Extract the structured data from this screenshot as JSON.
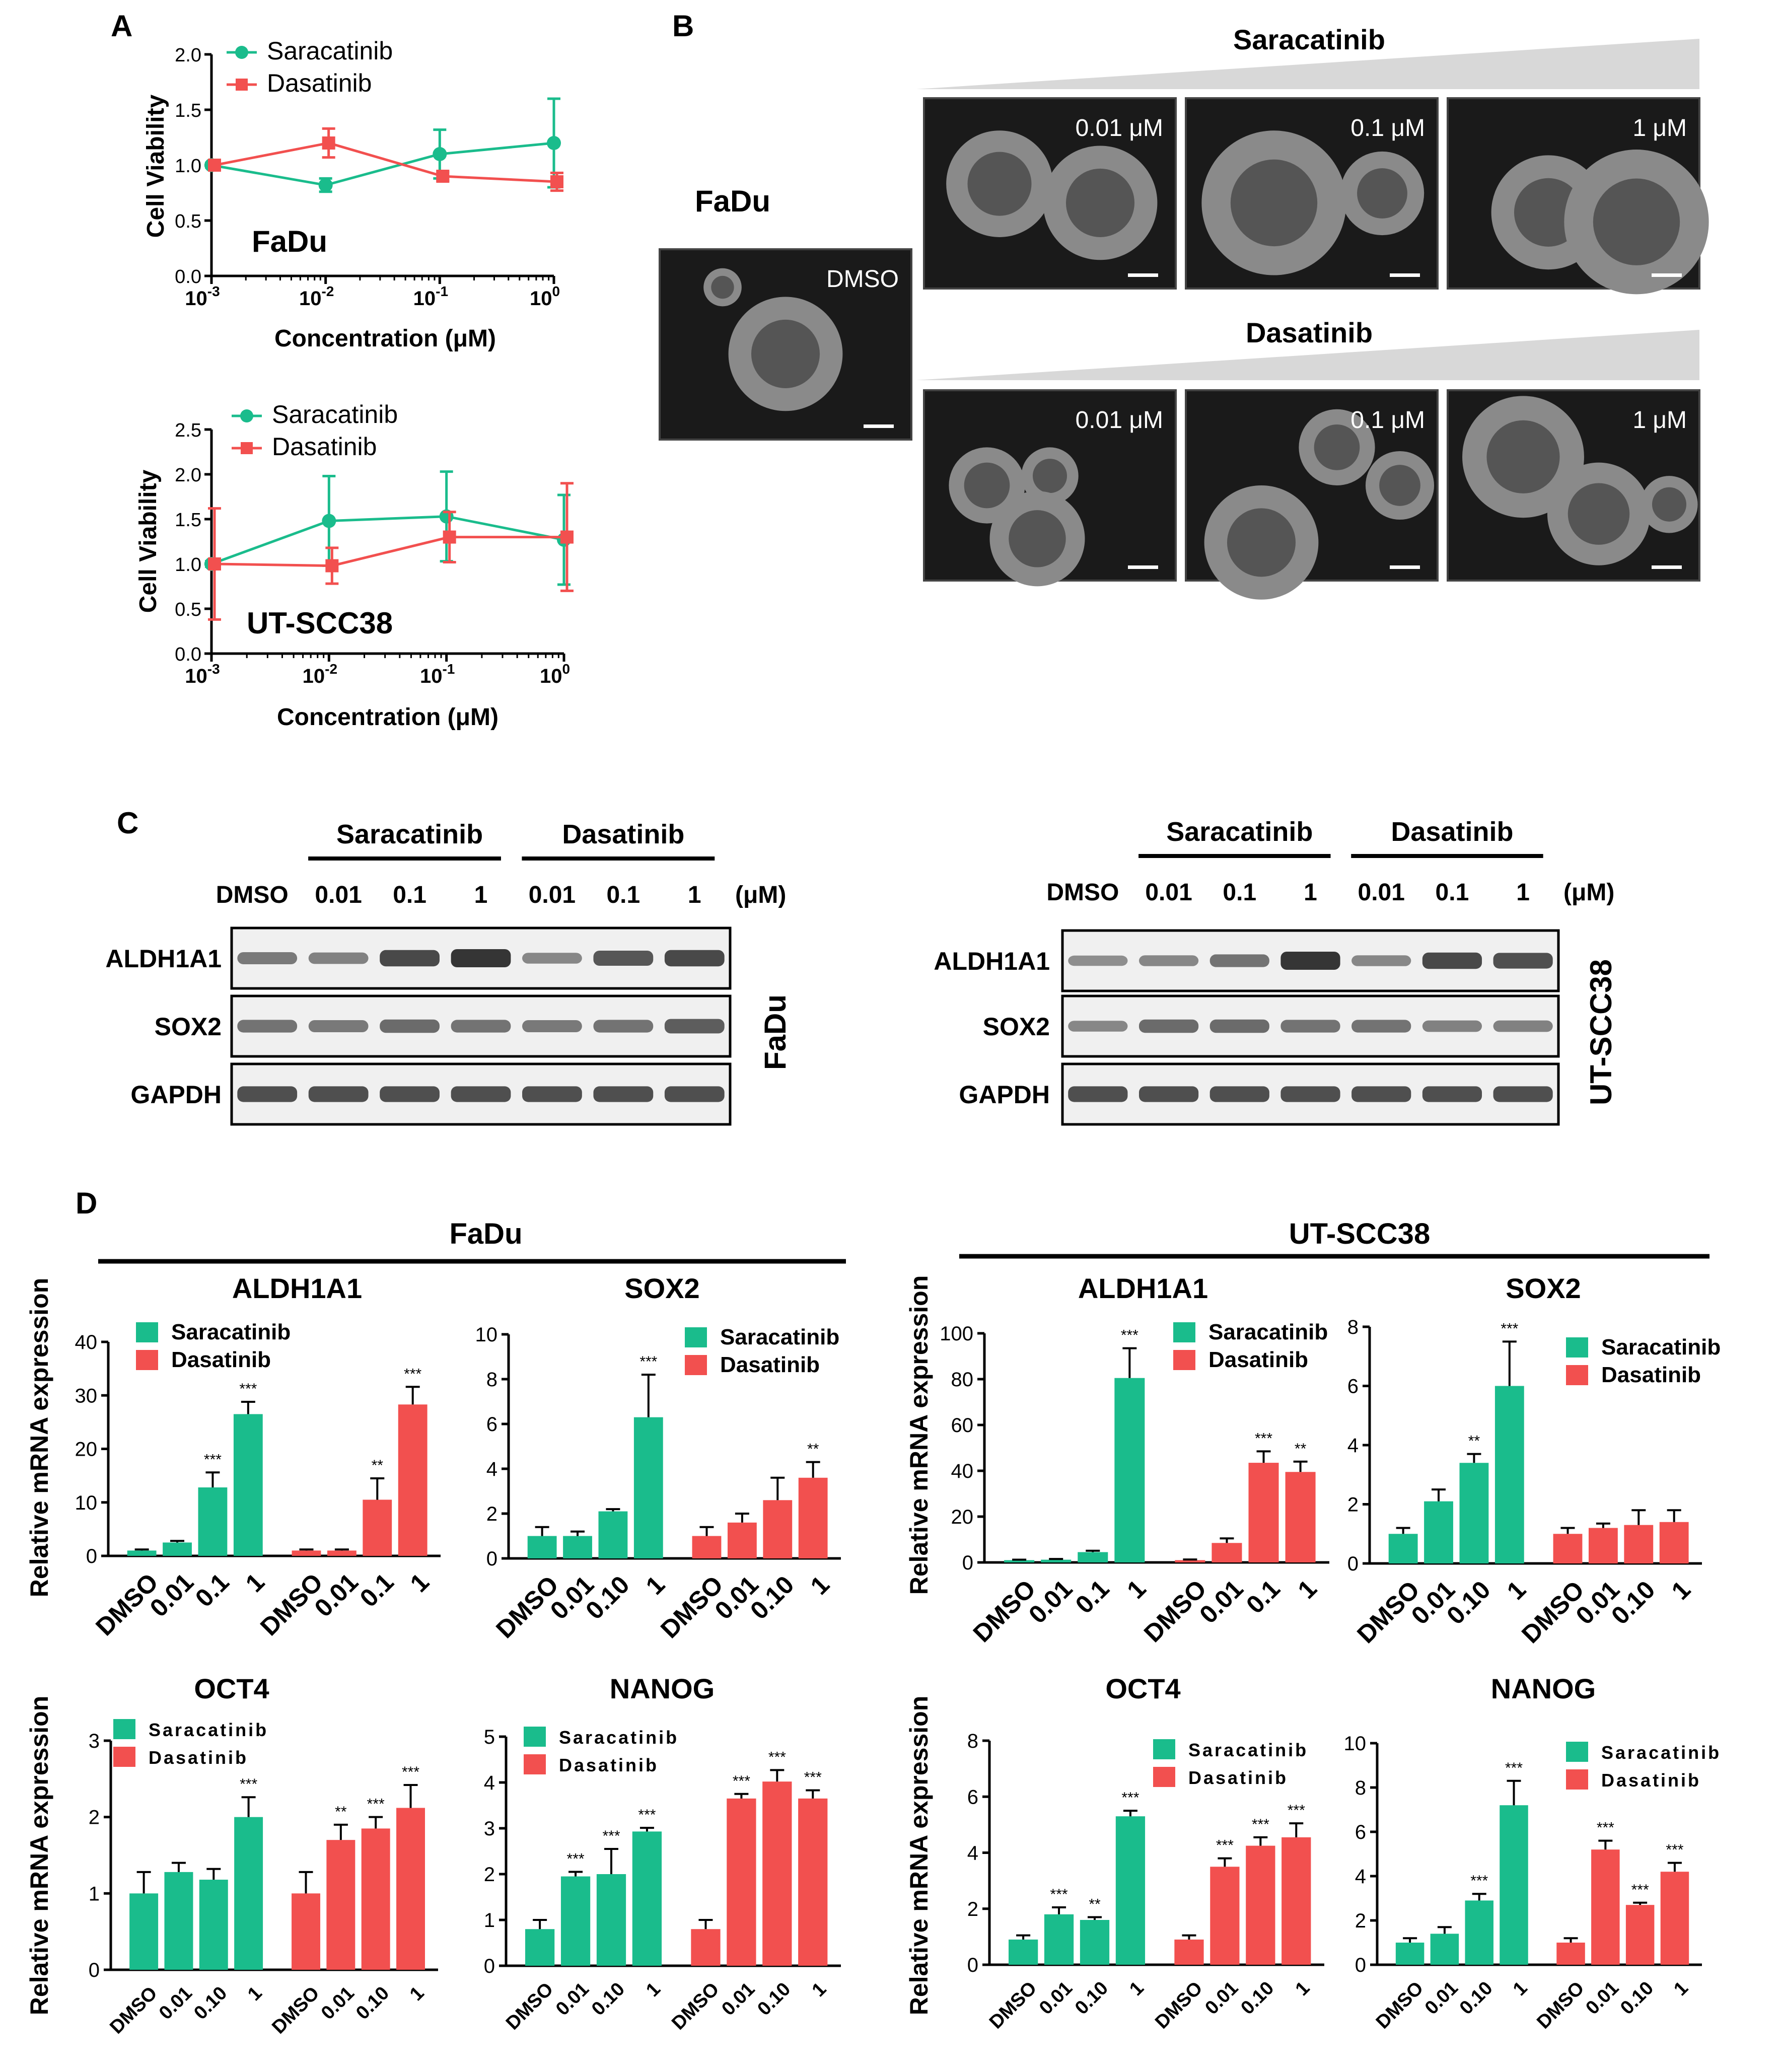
{
  "panel_labels": {
    "A": "A",
    "B": "B",
    "C": "C",
    "D": "D"
  },
  "colors": {
    "saracatinib": "#1abc8c",
    "dasatinib": "#f2504f",
    "axis": "#000000",
    "band": "#2a2a2a",
    "micro_bg": "#1a1a1a"
  },
  "chart_data": [
    {
      "id": "A1",
      "type": "line",
      "cell_line": "FaDu",
      "xlabel": "Concentration (μM)",
      "ylabel": "Cell Viability",
      "xscale": "log10",
      "x_ticks": [
        {
          "exp": -3,
          "base": "10",
          "sup": "-3"
        },
        {
          "exp": -2,
          "base": "10",
          "sup": "-2"
        },
        {
          "exp": -1,
          "base": "10",
          "sup": "-1"
        },
        {
          "exp": 0,
          "base": "10",
          "sup": "0"
        }
      ],
      "ylim": [
        0,
        2.0
      ],
      "y_ticks": [
        "0.0",
        "0.5",
        "1.0",
        "1.5",
        "2.0"
      ],
      "x": [
        0.001,
        0.01,
        0.1,
        1
      ],
      "series": [
        {
          "name": "Saracatinib",
          "color": "#1abc8c",
          "marker": "circle",
          "values": [
            1.0,
            0.82,
            1.1,
            1.2
          ],
          "errors": [
            0.02,
            0.06,
            0.22,
            0.4
          ]
        },
        {
          "name": "Dasatinib",
          "color": "#f2504f",
          "marker": "square",
          "values": [
            1.0,
            1.2,
            0.9,
            0.85
          ],
          "errors": [
            0.03,
            0.13,
            0.04,
            0.08
          ]
        }
      ]
    },
    {
      "id": "A2",
      "type": "line",
      "cell_line": "UT-SCC38",
      "xlabel": "Concentration (μM)",
      "ylabel": "Cell Viability",
      "xscale": "log10",
      "x_ticks": [
        {
          "exp": -3,
          "base": "10",
          "sup": "-3"
        },
        {
          "exp": -2,
          "base": "10",
          "sup": "-2"
        },
        {
          "exp": -1,
          "base": "10",
          "sup": "-1"
        },
        {
          "exp": 0,
          "base": "10",
          "sup": "0"
        }
      ],
      "ylim": [
        0,
        2.5
      ],
      "y_ticks": [
        "0.0",
        "0.5",
        "1.0",
        "1.5",
        "2.0",
        "2.5"
      ],
      "x": [
        0.001,
        0.01,
        0.1,
        1
      ],
      "series": [
        {
          "name": "Saracatinib",
          "color": "#1abc8c",
          "marker": "circle",
          "values": [
            1.0,
            1.48,
            1.53,
            1.27
          ],
          "errors": [
            0.03,
            0.5,
            0.5,
            0.5
          ]
        },
        {
          "name": "Dasatinib",
          "color": "#f2504f",
          "marker": "square",
          "values": [
            1.0,
            0.98,
            1.3,
            1.3
          ],
          "errors": [
            0.62,
            0.2,
            0.28,
            0.6
          ]
        }
      ]
    },
    {
      "id": "D-FaDu-ALDH1A1",
      "type": "bar",
      "cell_line": "FaDu",
      "gene": "ALDH1A1",
      "ylabel": "Relative mRNA expression",
      "ylim": [
        0,
        40
      ],
      "y_ticks": [
        "0",
        "10",
        "20",
        "30",
        "40"
      ],
      "categories": [
        "DMSO",
        "0.01",
        "0.1",
        "1"
      ],
      "series": [
        {
          "name": "Saracatinib",
          "values": [
            1,
            2.5,
            12.8,
            26.5
          ],
          "errors": [
            0.2,
            0.3,
            2.8,
            2.3
          ],
          "sig": [
            "",
            "",
            "***",
            "***"
          ]
        },
        {
          "name": "Dasatinib",
          "values": [
            1,
            1,
            10.5,
            28.3
          ],
          "errors": [
            0.2,
            0.2,
            4.0,
            3.3
          ],
          "sig": [
            "",
            "",
            "**",
            "***"
          ]
        }
      ]
    },
    {
      "id": "D-FaDu-SOX2",
      "type": "bar",
      "cell_line": "FaDu",
      "gene": "SOX2",
      "ylabel": "",
      "ylim": [
        0,
        10
      ],
      "y_ticks": [
        "0",
        "2",
        "4",
        "6",
        "8",
        "10"
      ],
      "categories": [
        "DMSO",
        "0.01",
        "0.10",
        "1"
      ],
      "series": [
        {
          "name": "Saracatinib",
          "values": [
            1,
            1,
            2.1,
            6.3
          ],
          "errors": [
            0.4,
            0.2,
            0.1,
            1.9
          ],
          "sig": [
            "",
            "",
            "",
            "***"
          ]
        },
        {
          "name": "Dasatinib",
          "values": [
            1,
            1.6,
            2.6,
            3.6
          ],
          "errors": [
            0.4,
            0.4,
            1.0,
            0.7
          ],
          "sig": [
            "",
            "",
            "",
            "**"
          ]
        }
      ]
    },
    {
      "id": "D-UT-ALDH1A1",
      "type": "bar",
      "cell_line": "UT-SCC38",
      "gene": "ALDH1A1",
      "ylabel": "Relative mRNA expression",
      "ylim": [
        0,
        100
      ],
      "y_ticks": [
        "0",
        "20",
        "40",
        "60",
        "80",
        "100"
      ],
      "categories": [
        "DMSO",
        "0.01",
        "0.1",
        "1"
      ],
      "series": [
        {
          "name": "Saracatinib",
          "values": [
            1,
            1.2,
            4.5,
            80.5
          ],
          "errors": [
            0.2,
            0.3,
            0.6,
            13
          ],
          "sig": [
            "",
            "",
            "",
            "***"
          ]
        },
        {
          "name": "Dasatinib",
          "values": [
            1,
            8.5,
            43.5,
            39.5
          ],
          "errors": [
            0.3,
            2.0,
            5.0,
            4.5
          ],
          "sig": [
            "",
            "",
            "***",
            "**"
          ]
        }
      ]
    },
    {
      "id": "D-UT-SOX2",
      "type": "bar",
      "cell_line": "UT-SCC38",
      "gene": "SOX2",
      "ylabel": "",
      "ylim": [
        0,
        8
      ],
      "y_ticks": [
        "0",
        "2",
        "4",
        "6",
        "8"
      ],
      "categories": [
        "DMSO",
        "0.01",
        "0.10",
        "1"
      ],
      "series": [
        {
          "name": "Saracatinib",
          "values": [
            1,
            2.1,
            3.4,
            6.0
          ],
          "errors": [
            0.2,
            0.4,
            0.3,
            1.5
          ],
          "sig": [
            "",
            "",
            "**",
            "***"
          ]
        },
        {
          "name": "Dasatinib",
          "values": [
            1,
            1.2,
            1.3,
            1.4
          ],
          "errors": [
            0.2,
            0.15,
            0.5,
            0.4
          ],
          "sig": [
            "",
            "",
            "",
            ""
          ]
        }
      ]
    },
    {
      "id": "D-FaDu-OCT4",
      "type": "bar",
      "cell_line": "FaDu",
      "gene": "OCT4",
      "ylabel": "Relative mRNA expression",
      "ylim": [
        0,
        3
      ],
      "y_ticks": [
        "0",
        "1",
        "2",
        "3"
      ],
      "categories": [
        "DMSO",
        "0.01",
        "0.10",
        "1"
      ],
      "series": [
        {
          "name": "Saracatinib",
          "values": [
            1,
            1.28,
            1.18,
            2.0
          ],
          "errors": [
            0.28,
            0.12,
            0.14,
            0.26
          ],
          "sig": [
            "",
            "",
            "",
            "***"
          ]
        },
        {
          "name": "Dasatinib",
          "values": [
            1,
            1.7,
            1.85,
            2.12
          ],
          "errors": [
            0.28,
            0.2,
            0.15,
            0.3
          ],
          "sig": [
            "",
            "**",
            "***",
            "***"
          ]
        }
      ]
    },
    {
      "id": "D-FaDu-NANOG",
      "type": "bar",
      "cell_line": "FaDu",
      "gene": "NANOG",
      "ylabel": "",
      "ylim": [
        0,
        5
      ],
      "y_ticks": [
        "0",
        "1",
        "2",
        "3",
        "4",
        "5"
      ],
      "categories": [
        "DMSO",
        "0.01",
        "0.10",
        "1"
      ],
      "series": [
        {
          "name": "Saracatinib",
          "values": [
            0.8,
            1.95,
            2.0,
            2.93
          ],
          "errors": [
            0.2,
            0.1,
            0.55,
            0.08
          ],
          "sig": [
            "",
            "***",
            "***",
            "***"
          ]
        },
        {
          "name": "Dasatinib",
          "values": [
            0.8,
            3.65,
            4.02,
            3.65
          ],
          "errors": [
            0.2,
            0.1,
            0.25,
            0.18
          ],
          "sig": [
            "",
            "***",
            "***",
            "***"
          ]
        }
      ]
    },
    {
      "id": "D-UT-OCT4",
      "type": "bar",
      "cell_line": "UT-SCC38",
      "gene": "OCT4",
      "ylabel": "Relative mRNA expression",
      "ylim": [
        0,
        8
      ],
      "y_ticks": [
        "0",
        "2",
        "4",
        "6",
        "8"
      ],
      "categories": [
        "DMSO",
        "0.01",
        "0.10",
        "1"
      ],
      "series": [
        {
          "name": "Saracatinib",
          "values": [
            0.9,
            1.8,
            1.6,
            5.3
          ],
          "errors": [
            0.15,
            0.25,
            0.1,
            0.2
          ],
          "sig": [
            "",
            "***",
            "**",
            "***"
          ]
        },
        {
          "name": "Dasatinib",
          "values": [
            0.9,
            3.5,
            4.25,
            4.55
          ],
          "errors": [
            0.15,
            0.3,
            0.3,
            0.5
          ],
          "sig": [
            "",
            "***",
            "***",
            "***"
          ]
        }
      ]
    },
    {
      "id": "D-UT-NANOG",
      "type": "bar",
      "cell_line": "UT-SCC38",
      "gene": "NANOG",
      "ylabel": "",
      "ylim": [
        0,
        10
      ],
      "y_ticks": [
        "0",
        "2",
        "4",
        "6",
        "8",
        "10"
      ],
      "categories": [
        "DMSO",
        "0.01",
        "0.10",
        "1"
      ],
      "series": [
        {
          "name": "Saracatinib",
          "values": [
            1,
            1.4,
            2.9,
            7.2
          ],
          "errors": [
            0.2,
            0.3,
            0.3,
            1.1
          ],
          "sig": [
            "",
            "",
            "***",
            "***"
          ]
        },
        {
          "name": "Dasatinib",
          "values": [
            1,
            5.2,
            2.7,
            4.2
          ],
          "errors": [
            0.2,
            0.4,
            0.1,
            0.4
          ],
          "sig": [
            "",
            "***",
            "***",
            "***"
          ]
        }
      ]
    }
  ],
  "panel_b": {
    "cell_line": "FaDu",
    "control_label": "DMSO",
    "rows": [
      {
        "drug": "Saracatinib",
        "conc": [
          "0.01 μM",
          "0.1 μM",
          "1 μM"
        ]
      },
      {
        "drug": "Dasatinib",
        "conc": [
          "0.01 μM",
          "0.1 μM",
          "1 μM"
        ]
      }
    ]
  },
  "panel_c": {
    "unit": "(μM)",
    "blots": [
      {
        "cell_line": "FaDu",
        "groups": [
          "Saracatinib",
          "Dasatinib"
        ],
        "lanes": [
          "DMSO",
          "0.01",
          "0.1",
          "1",
          "0.01",
          "0.1",
          "1"
        ],
        "proteins": [
          {
            "name": "ALDH1A1",
            "intensities": [
              0.5,
              0.45,
              0.85,
              1.0,
              0.4,
              0.75,
              0.85
            ]
          },
          {
            "name": "SOX2",
            "intensities": [
              0.55,
              0.5,
              0.6,
              0.55,
              0.5,
              0.55,
              0.7
            ]
          },
          {
            "name": "GAPDH",
            "intensities": [
              0.8,
              0.8,
              0.8,
              0.8,
              0.8,
              0.8,
              0.8
            ]
          }
        ]
      },
      {
        "cell_line": "UT-SCC38",
        "groups": [
          "Saracatinib",
          "Dasatinib"
        ],
        "lanes": [
          "DMSO",
          "0.01",
          "0.1",
          "1",
          "0.01",
          "0.1",
          "1"
        ],
        "proteins": [
          {
            "name": "ALDH1A1",
            "intensities": [
              0.35,
              0.4,
              0.55,
              1.0,
              0.4,
              0.85,
              0.8
            ]
          },
          {
            "name": "SOX2",
            "intensities": [
              0.4,
              0.6,
              0.6,
              0.55,
              0.55,
              0.45,
              0.45
            ]
          },
          {
            "name": "GAPDH",
            "intensities": [
              0.8,
              0.8,
              0.8,
              0.8,
              0.8,
              0.8,
              0.8
            ]
          }
        ]
      }
    ]
  },
  "panel_d_headers": [
    "FaDu",
    "UT-SCC38"
  ],
  "legend": {
    "saracatinib": "Saracatinib",
    "dasatinib": "Dasatinib"
  }
}
